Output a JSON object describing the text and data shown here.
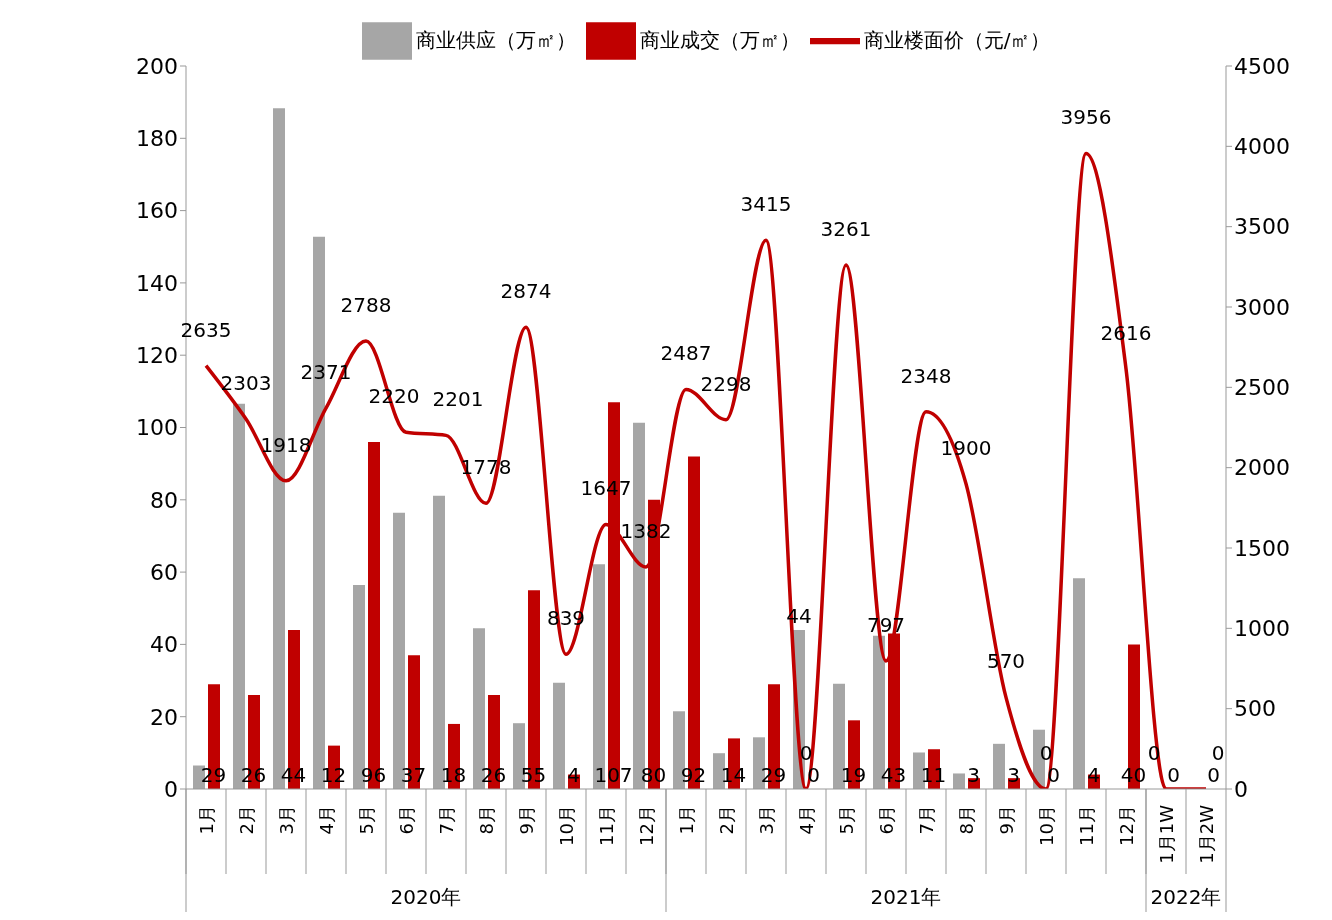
{
  "chart_data": {
    "type": "bar",
    "categories": [
      "1月",
      "2月",
      "3月",
      "4月",
      "5月",
      "6月",
      "7月",
      "8月",
      "9月",
      "10月",
      "11月",
      "12月",
      "1月",
      "2月",
      "3月",
      "4月",
      "5月",
      "6月",
      "7月",
      "8月",
      "9月",
      "10月",
      "11月",
      "12月",
      "1月1W",
      "1月2W"
    ],
    "series": [
      {
        "name": "商业供应（万㎡）",
        "type": "bar",
        "color": "#a6a6a6",
        "values": [
          6.5,
          106.6,
          188.3,
          152.8,
          56.4,
          76.4,
          81.1,
          44.5,
          18.2,
          29.4,
          62.2,
          101.3,
          21.5,
          9.9,
          14.3,
          44,
          29.1,
          42.4,
          10.1,
          4.3,
          12.5,
          16.4,
          58.3,
          null,
          null,
          null
        ],
        "value_labels": [
          null,
          null,
          null,
          null,
          null,
          null,
          null,
          null,
          null,
          null,
          null,
          null,
          null,
          null,
          null,
          "44",
          null,
          null,
          null,
          null,
          null,
          null,
          null,
          null,
          null,
          null
        ]
      },
      {
        "name": "商业成交（万㎡）",
        "type": "bar",
        "color": "#c00000",
        "values": [
          29,
          26,
          44,
          12,
          96,
          37,
          18,
          26,
          55,
          4,
          107,
          80,
          92,
          14,
          29,
          0,
          19,
          43,
          11,
          3,
          3,
          0,
          4,
          40,
          0,
          0
        ],
        "value_labels": [
          "29",
          "26",
          "44",
          "12",
          "96",
          "37",
          "18",
          "26",
          "55",
          "4",
          "107",
          "80",
          "92",
          "14",
          "29",
          "0",
          "19",
          "43",
          "11",
          "3",
          "3",
          "0",
          "4",
          "40",
          "0",
          "0"
        ]
      },
      {
        "name": "商业楼面价（元/㎡）",
        "type": "line",
        "axis": "y2",
        "color": "#c00000",
        "values": [
          2635,
          2303,
          1918,
          2371,
          2788,
          2220,
          2201,
          1778,
          2874,
          839,
          1647,
          1382,
          2487,
          2298,
          3415,
          0,
          3261,
          797,
          2348,
          1900,
          570,
          0,
          3956,
          2616,
          0,
          0
        ],
        "value_labels": [
          "2635",
          "2303",
          "1918",
          "2371",
          "2788",
          "2220",
          "2201",
          "1778",
          "2874",
          "839",
          "1647",
          "1382",
          "2487",
          "2298",
          "3415",
          "0",
          "3261",
          "797",
          "2348",
          "1900",
          "570",
          "0",
          "3956",
          "2616",
          "0",
          "0"
        ]
      }
    ],
    "ylim": [
      0,
      200
    ],
    "yticks": [
      0,
      20,
      40,
      60,
      80,
      100,
      120,
      140,
      160,
      180,
      200
    ],
    "y2lim": [
      0,
      4500
    ],
    "y2ticks": [
      0,
      500,
      1000,
      1500,
      2000,
      2500,
      3000,
      3500,
      4000,
      4500
    ],
    "annotations": [
      "2020年",
      "2021年",
      "2022年"
    ],
    "legend": "top",
    "grid": false,
    "marker": "none"
  }
}
